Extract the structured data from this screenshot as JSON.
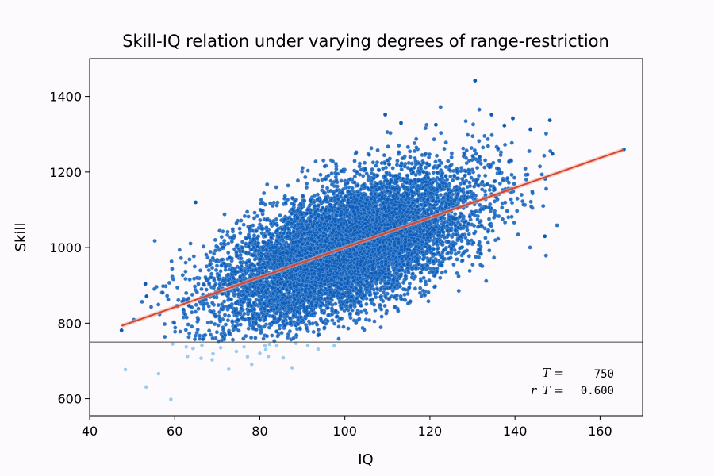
{
  "chart_data": {
    "type": "scatter",
    "title": "Skill-IQ relation under varying degrees of range-restriction",
    "xlabel": "IQ",
    "ylabel": "Skill",
    "xlim": [
      40,
      170
    ],
    "ylim": [
      555,
      1500
    ],
    "xticks": [
      "40",
      "60",
      "80",
      "100",
      "120",
      "140",
      "160"
    ],
    "yticks": [
      "600",
      "800",
      "1000",
      "1200",
      "1400"
    ],
    "grid": false,
    "point_color": "#0b5cb8",
    "restricted_point_color": "#9ccbef",
    "fit_line_color": "#d8452e",
    "threshold_line_color": "#444444",
    "threshold": {
      "label": "T =",
      "value": "750"
    },
    "correlation": {
      "label": "r_T =",
      "value": "0.600"
    },
    "fit_line": {
      "x": [
        47.5,
        165.5
      ],
      "y": [
        793,
        1259
      ]
    },
    "cloud": {
      "n": 9000,
      "x_mean": 100,
      "x_sd": 15,
      "y_mean": 1000,
      "y_sd": 100,
      "r": 0.6
    },
    "outliers": [
      {
        "x": 130.6,
        "y": 1442
      },
      {
        "x": 109.5,
        "y": 1352
      },
      {
        "x": 134.5,
        "y": 1352
      },
      {
        "x": 139.5,
        "y": 1342
      },
      {
        "x": 148.2,
        "y": 1337
      },
      {
        "x": 137.5,
        "y": 1323
      },
      {
        "x": 113.2,
        "y": 1330
      },
      {
        "x": 121.4,
        "y": 1325
      },
      {
        "x": 143.6,
        "y": 1313
      },
      {
        "x": 165.6,
        "y": 1260
      },
      {
        "x": 148.8,
        "y": 1248
      },
      {
        "x": 147.1,
        "y": 1182
      },
      {
        "x": 64.9,
        "y": 1120
      },
      {
        "x": 53.1,
        "y": 904
      },
      {
        "x": 53.4,
        "y": 871
      },
      {
        "x": 47.5,
        "y": 781
      },
      {
        "x": 147.0,
        "y": 1030
      }
    ],
    "restricted_points": [
      {
        "x": 59.1,
        "y": 598
      },
      {
        "x": 53.3,
        "y": 631
      },
      {
        "x": 48.4,
        "y": 677
      },
      {
        "x": 56.2,
        "y": 666
      },
      {
        "x": 66.2,
        "y": 707
      },
      {
        "x": 69.0,
        "y": 719
      },
      {
        "x": 64.3,
        "y": 733
      },
      {
        "x": 72.7,
        "y": 678
      },
      {
        "x": 78.1,
        "y": 691
      },
      {
        "x": 77.1,
        "y": 711
      },
      {
        "x": 82.0,
        "y": 712
      },
      {
        "x": 82.3,
        "y": 744
      },
      {
        "x": 81.2,
        "y": 740
      },
      {
        "x": 81.4,
        "y": 730
      },
      {
        "x": 85.5,
        "y": 708
      },
      {
        "x": 87.6,
        "y": 682
      },
      {
        "x": 80.0,
        "y": 720
      },
      {
        "x": 66.4,
        "y": 741
      },
      {
        "x": 68.8,
        "y": 703
      },
      {
        "x": 59.5,
        "y": 745
      },
      {
        "x": 62.7,
        "y": 737
      },
      {
        "x": 91.3,
        "y": 741
      },
      {
        "x": 93.7,
        "y": 731
      },
      {
        "x": 97.5,
        "y": 740
      },
      {
        "x": 76.3,
        "y": 737
      },
      {
        "x": 74.5,
        "y": 725
      },
      {
        "x": 70.8,
        "y": 735
      },
      {
        "x": 84.0,
        "y": 740
      },
      {
        "x": 88.5,
        "y": 747
      },
      {
        "x": 63.0,
        "y": 712
      }
    ]
  }
}
